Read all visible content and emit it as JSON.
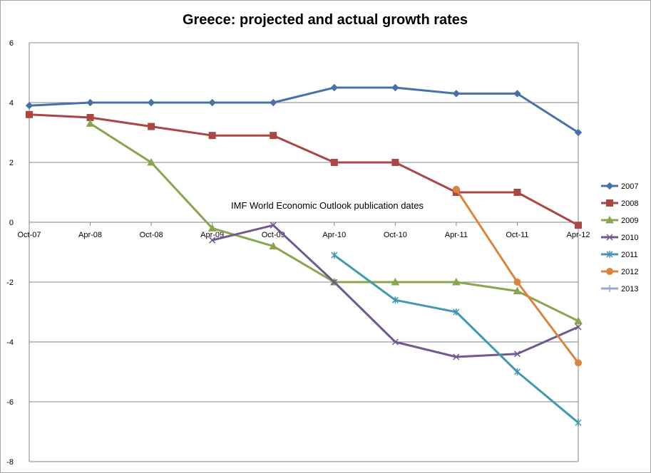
{
  "chart_data": {
    "type": "line",
    "title": "Greece: projected and actual growth rates",
    "annotation": "IMF World Economic Outlook publication dates",
    "categories": [
      "Oct-07",
      "Apr-08",
      "Oct-08",
      "Apr-09",
      "Oct-09",
      "Apr-10",
      "Oct-10",
      "Apr-11",
      "Oct-11",
      "Apr-12"
    ],
    "ylim": [
      -8,
      6
    ],
    "yticks": [
      6,
      4,
      2,
      0,
      -2,
      -4,
      -6,
      -8
    ],
    "grid": true,
    "legend_position": "right",
    "series": [
      {
        "name": "2007",
        "color": "#4572a7",
        "marker": "diamond",
        "values": [
          3.9,
          4.0,
          4.0,
          4.0,
          4.0,
          4.5,
          4.5,
          4.3,
          4.3,
          3.0
        ]
      },
      {
        "name": "2008",
        "color": "#aa4643",
        "marker": "square",
        "values": [
          3.6,
          3.5,
          3.2,
          2.9,
          2.9,
          2.0,
          2.0,
          1.0,
          1.0,
          -0.1
        ]
      },
      {
        "name": "2009",
        "color": "#89a54e",
        "marker": "triangle",
        "values": [
          null,
          3.3,
          2.0,
          -0.2,
          -0.8,
          -2.0,
          -2.0,
          -2.0,
          -2.3,
          -3.3
        ]
      },
      {
        "name": "2010",
        "color": "#71588f",
        "marker": "x",
        "values": [
          null,
          null,
          null,
          -0.6,
          -0.1,
          -2.0,
          -4.0,
          -4.5,
          -4.4,
          -3.5
        ]
      },
      {
        "name": "2011",
        "color": "#4198af",
        "marker": "star",
        "values": [
          null,
          null,
          null,
          null,
          null,
          -1.1,
          -2.6,
          -3.0,
          -5.0,
          -6.7
        ]
      },
      {
        "name": "2012",
        "color": "#db843d",
        "marker": "circle",
        "values": [
          null,
          null,
          null,
          null,
          null,
          null,
          null,
          1.1,
          -2.0,
          -4.7
        ]
      },
      {
        "name": "2013",
        "color": "#93a9cf",
        "marker": "plus",
        "values": [
          null,
          null,
          null,
          null,
          null,
          null,
          null,
          null,
          null,
          null
        ]
      }
    ]
  }
}
